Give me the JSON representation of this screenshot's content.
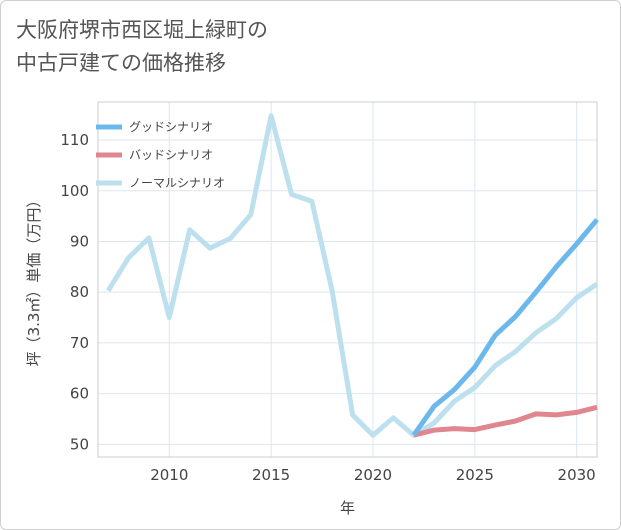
{
  "chart_data": {
    "type": "line",
    "title_lines": [
      "大阪府堺市西区堀上緑町の",
      "中古戸建ての価格推移"
    ],
    "xlabel": "年",
    "ylabel": "坪（3.3㎡）単価（万円）",
    "xlim": [
      2006.5,
      2031
    ],
    "ylim": [
      47.5,
      117.5
    ],
    "xticks": [
      2010,
      2015,
      2020,
      2025,
      2030
    ],
    "yticks": [
      50,
      60,
      70,
      80,
      90,
      100,
      110
    ],
    "grid": true,
    "legend_position": "top-left",
    "series": [
      {
        "name": "グッドシナリオ",
        "color": "#6cb8ec",
        "x": [
          2022,
          2023,
          2024,
          2025,
          2026,
          2027,
          2028,
          2029,
          2030,
          2031
        ],
        "y": [
          51.8,
          57.5,
          60.8,
          65.2,
          71.5,
          75.2,
          80.0,
          85.0,
          89.5,
          94.3
        ]
      },
      {
        "name": "バッドシナリオ",
        "color": "#e0868f",
        "x": [
          2022,
          2023,
          2024,
          2025,
          2026,
          2027,
          2028,
          2029,
          2030,
          2031
        ],
        "y": [
          51.8,
          52.8,
          53.1,
          52.9,
          53.8,
          54.6,
          56.0,
          55.8,
          56.3,
          57.3
        ]
      },
      {
        "name": "ノーマルシナリオ",
        "color": "#bde0ee",
        "x": [
          2007,
          2008,
          2009,
          2010,
          2011,
          2012,
          2013,
          2014,
          2015,
          2016,
          2017,
          2018,
          2019,
          2020,
          2021,
          2022,
          2023,
          2024,
          2025,
          2026,
          2027,
          2028,
          2029,
          2030,
          2031
        ],
        "y": [
          80.3,
          86.8,
          90.7,
          75.0,
          92.3,
          88.7,
          90.6,
          95.3,
          114.8,
          99.3,
          97.9,
          80.2,
          55.8,
          51.8,
          55.2,
          51.8,
          54.2,
          58.5,
          61.2,
          65.5,
          68.3,
          72.0,
          74.8,
          78.9,
          81.6
        ]
      }
    ]
  }
}
